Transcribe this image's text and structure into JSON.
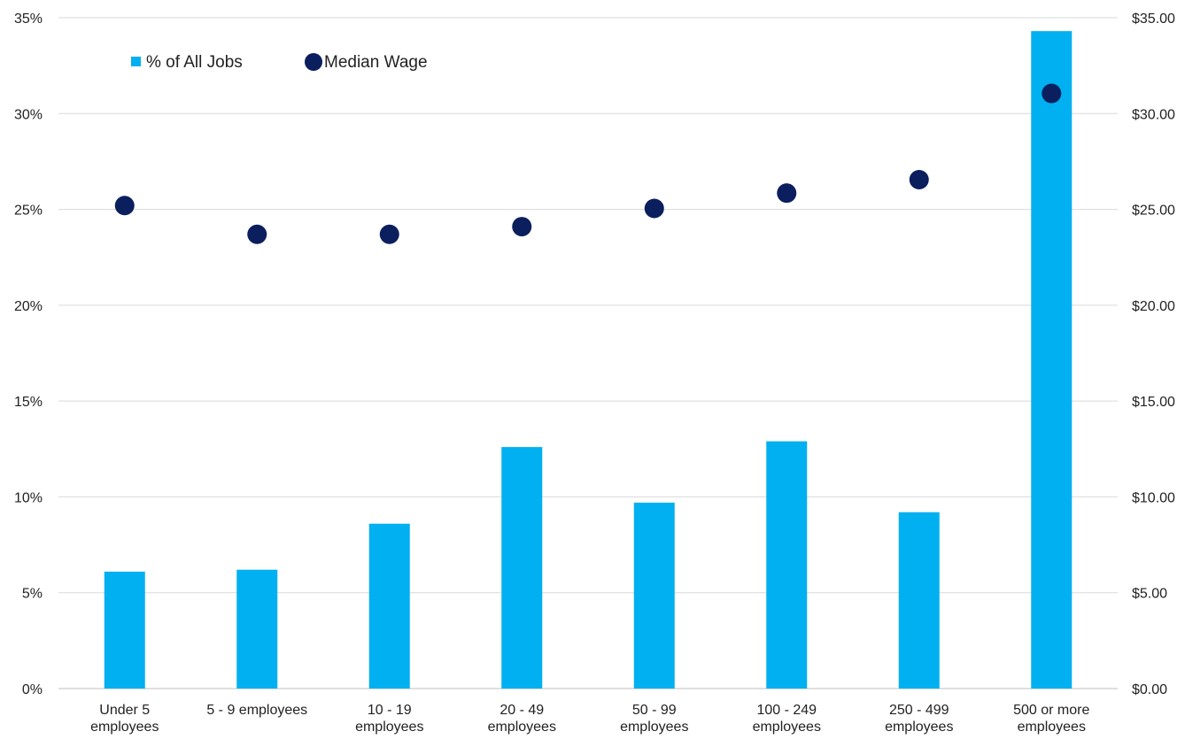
{
  "chart_data": {
    "type": "bar",
    "title": "",
    "xlabel": "",
    "categories": [
      [
        "Under 5",
        "employees"
      ],
      [
        "5 - 9 employees"
      ],
      [
        "10 - 19",
        "employees"
      ],
      [
        "20 - 49",
        "employees"
      ],
      [
        "50 - 99",
        "employees"
      ],
      [
        "100 - 249",
        "employees"
      ],
      [
        "250 - 499",
        "employees"
      ],
      [
        "500 or more",
        "employees"
      ]
    ],
    "series": [
      {
        "name": "% of All Jobs",
        "type": "bar",
        "axis": "left",
        "color": "#00B0F0",
        "values": [
          6.1,
          6.2,
          8.6,
          12.6,
          9.7,
          12.9,
          9.2,
          34.3
        ]
      },
      {
        "name": "Median Wage",
        "type": "scatter",
        "axis": "right",
        "color": "#0B1F5E",
        "values": [
          25.2,
          23.7,
          23.7,
          24.1,
          25.05,
          25.85,
          26.55,
          31.05
        ]
      }
    ],
    "left_axis": {
      "ylim": [
        0,
        35
      ],
      "ticks": [
        0,
        5,
        10,
        15,
        20,
        25,
        30,
        35
      ],
      "tick_labels": [
        "0%",
        "5%",
        "10%",
        "15%",
        "20%",
        "25%",
        "30%",
        "35%"
      ]
    },
    "right_axis": {
      "ylim": [
        0,
        35
      ],
      "ticks": [
        0,
        5,
        10,
        15,
        20,
        25,
        30,
        35
      ],
      "tick_labels": [
        "$0.00",
        "$5.00",
        "$10.00",
        "$15.00",
        "$20.00",
        "$25.00",
        "$30.00",
        "$35.00"
      ]
    },
    "grid": true,
    "legend": {
      "position": "top-left"
    }
  }
}
